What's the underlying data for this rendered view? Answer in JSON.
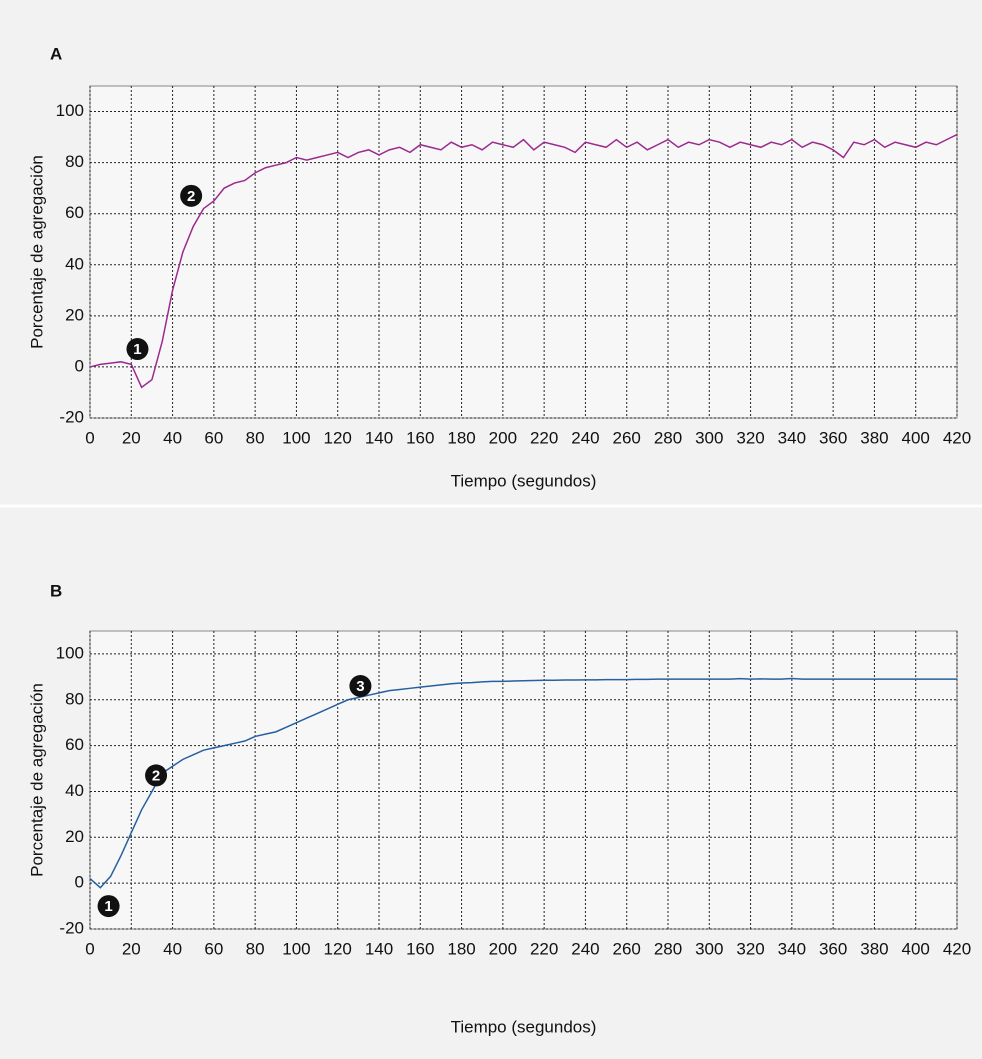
{
  "chart_data": [
    {
      "type": "line",
      "panel": "A",
      "xlabel": "Tiempo (segundos)",
      "ylabel": "Porcentaje de agregación",
      "color": "#9b2a8e",
      "x": [
        0,
        5,
        10,
        15,
        20,
        25,
        30,
        35,
        40,
        45,
        50,
        55,
        60,
        65,
        70,
        75,
        80,
        85,
        90,
        95,
        100,
        105,
        110,
        115,
        120,
        125,
        130,
        135,
        140,
        145,
        150,
        155,
        160,
        165,
        170,
        175,
        180,
        185,
        190,
        195,
        200,
        205,
        210,
        215,
        220,
        225,
        230,
        235,
        240,
        245,
        250,
        255,
        260,
        265,
        270,
        275,
        280,
        285,
        290,
        295,
        300,
        305,
        310,
        315,
        320,
        325,
        330,
        335,
        340,
        345,
        350,
        355,
        360,
        365,
        370,
        375,
        380,
        385,
        390,
        395,
        400,
        405,
        410,
        415,
        420
      ],
      "values": [
        0,
        1,
        1.5,
        2,
        1,
        -8,
        -5,
        10,
        30,
        45,
        55,
        62,
        65,
        70,
        72,
        73,
        76,
        78,
        79,
        80,
        82,
        81,
        82,
        83,
        84,
        82,
        84,
        85,
        83,
        85,
        86,
        84,
        87,
        86,
        85,
        88,
        86,
        87,
        85,
        88,
        87,
        86,
        89,
        85,
        88,
        87,
        86,
        84,
        88,
        87,
        86,
        89,
        86,
        88,
        85,
        87,
        89,
        86,
        88,
        87,
        89,
        88,
        86,
        88,
        87,
        86,
        88,
        87,
        89,
        86,
        88,
        87,
        85,
        82,
        88,
        87,
        89,
        86,
        88,
        87,
        86,
        88,
        87,
        89,
        91
      ],
      "xlim": [
        0,
        420
      ],
      "ylim": [
        -20,
        110
      ],
      "xticks": [
        0,
        20,
        40,
        60,
        80,
        100,
        120,
        140,
        160,
        180,
        200,
        220,
        240,
        260,
        280,
        300,
        320,
        340,
        360,
        380,
        400,
        420
      ],
      "yticks": [
        -20,
        0,
        20,
        40,
        60,
        80,
        100
      ],
      "grid": true,
      "annotations": [
        {
          "text": "1",
          "x": 23,
          "y": 7
        },
        {
          "text": "2",
          "x": 49,
          "y": 67
        }
      ]
    },
    {
      "type": "line",
      "panel": "B",
      "xlabel": "Tiempo (segundos)",
      "ylabel": "Porcentaje de agregación",
      "color": "#2660a0",
      "x": [
        0,
        5,
        10,
        15,
        20,
        25,
        30,
        35,
        40,
        45,
        50,
        55,
        60,
        65,
        70,
        75,
        80,
        85,
        90,
        95,
        100,
        105,
        110,
        115,
        120,
        125,
        130,
        135,
        140,
        145,
        150,
        155,
        160,
        165,
        170,
        175,
        180,
        185,
        190,
        195,
        200,
        205,
        210,
        215,
        220,
        225,
        230,
        235,
        240,
        245,
        250,
        255,
        260,
        265,
        270,
        275,
        280,
        285,
        290,
        295,
        300,
        305,
        310,
        315,
        320,
        325,
        330,
        335,
        340,
        345,
        350,
        355,
        360,
        365,
        370,
        375,
        380,
        385,
        390,
        395,
        400,
        405,
        410,
        415,
        420
      ],
      "values": [
        2,
        -2,
        3,
        12,
        22,
        32,
        40,
        48,
        51,
        54,
        56,
        58,
        59,
        60,
        61,
        62,
        64,
        65,
        66,
        68,
        70,
        72,
        74,
        76,
        78,
        80,
        81,
        82,
        83,
        84,
        84.5,
        85,
        85.5,
        86,
        86.5,
        87,
        87.3,
        87.5,
        87.8,
        88,
        88,
        88.2,
        88.3,
        88.4,
        88.5,
        88.5,
        88.6,
        88.6,
        88.7,
        88.7,
        88.8,
        88.8,
        88.8,
        88.9,
        88.9,
        89,
        89,
        89,
        89,
        89,
        89,
        89,
        89,
        89.2,
        89,
        89.1,
        89,
        89,
        89.3,
        89,
        89,
        89,
        89,
        89,
        89,
        89,
        89,
        89,
        89,
        89,
        89,
        89,
        89,
        89,
        89
      ],
      "xlim": [
        0,
        420
      ],
      "ylim": [
        -20,
        110
      ],
      "xticks": [
        0,
        20,
        40,
        60,
        80,
        100,
        120,
        140,
        160,
        180,
        200,
        220,
        240,
        260,
        280,
        300,
        320,
        340,
        360,
        380,
        400,
        420
      ],
      "yticks": [
        -20,
        0,
        20,
        40,
        60,
        80,
        100
      ],
      "grid": true,
      "annotations": [
        {
          "text": "1",
          "x": 9,
          "y": -10
        },
        {
          "text": "2",
          "x": 32,
          "y": 47
        },
        {
          "text": "3",
          "x": 131,
          "y": 86
        }
      ]
    }
  ]
}
